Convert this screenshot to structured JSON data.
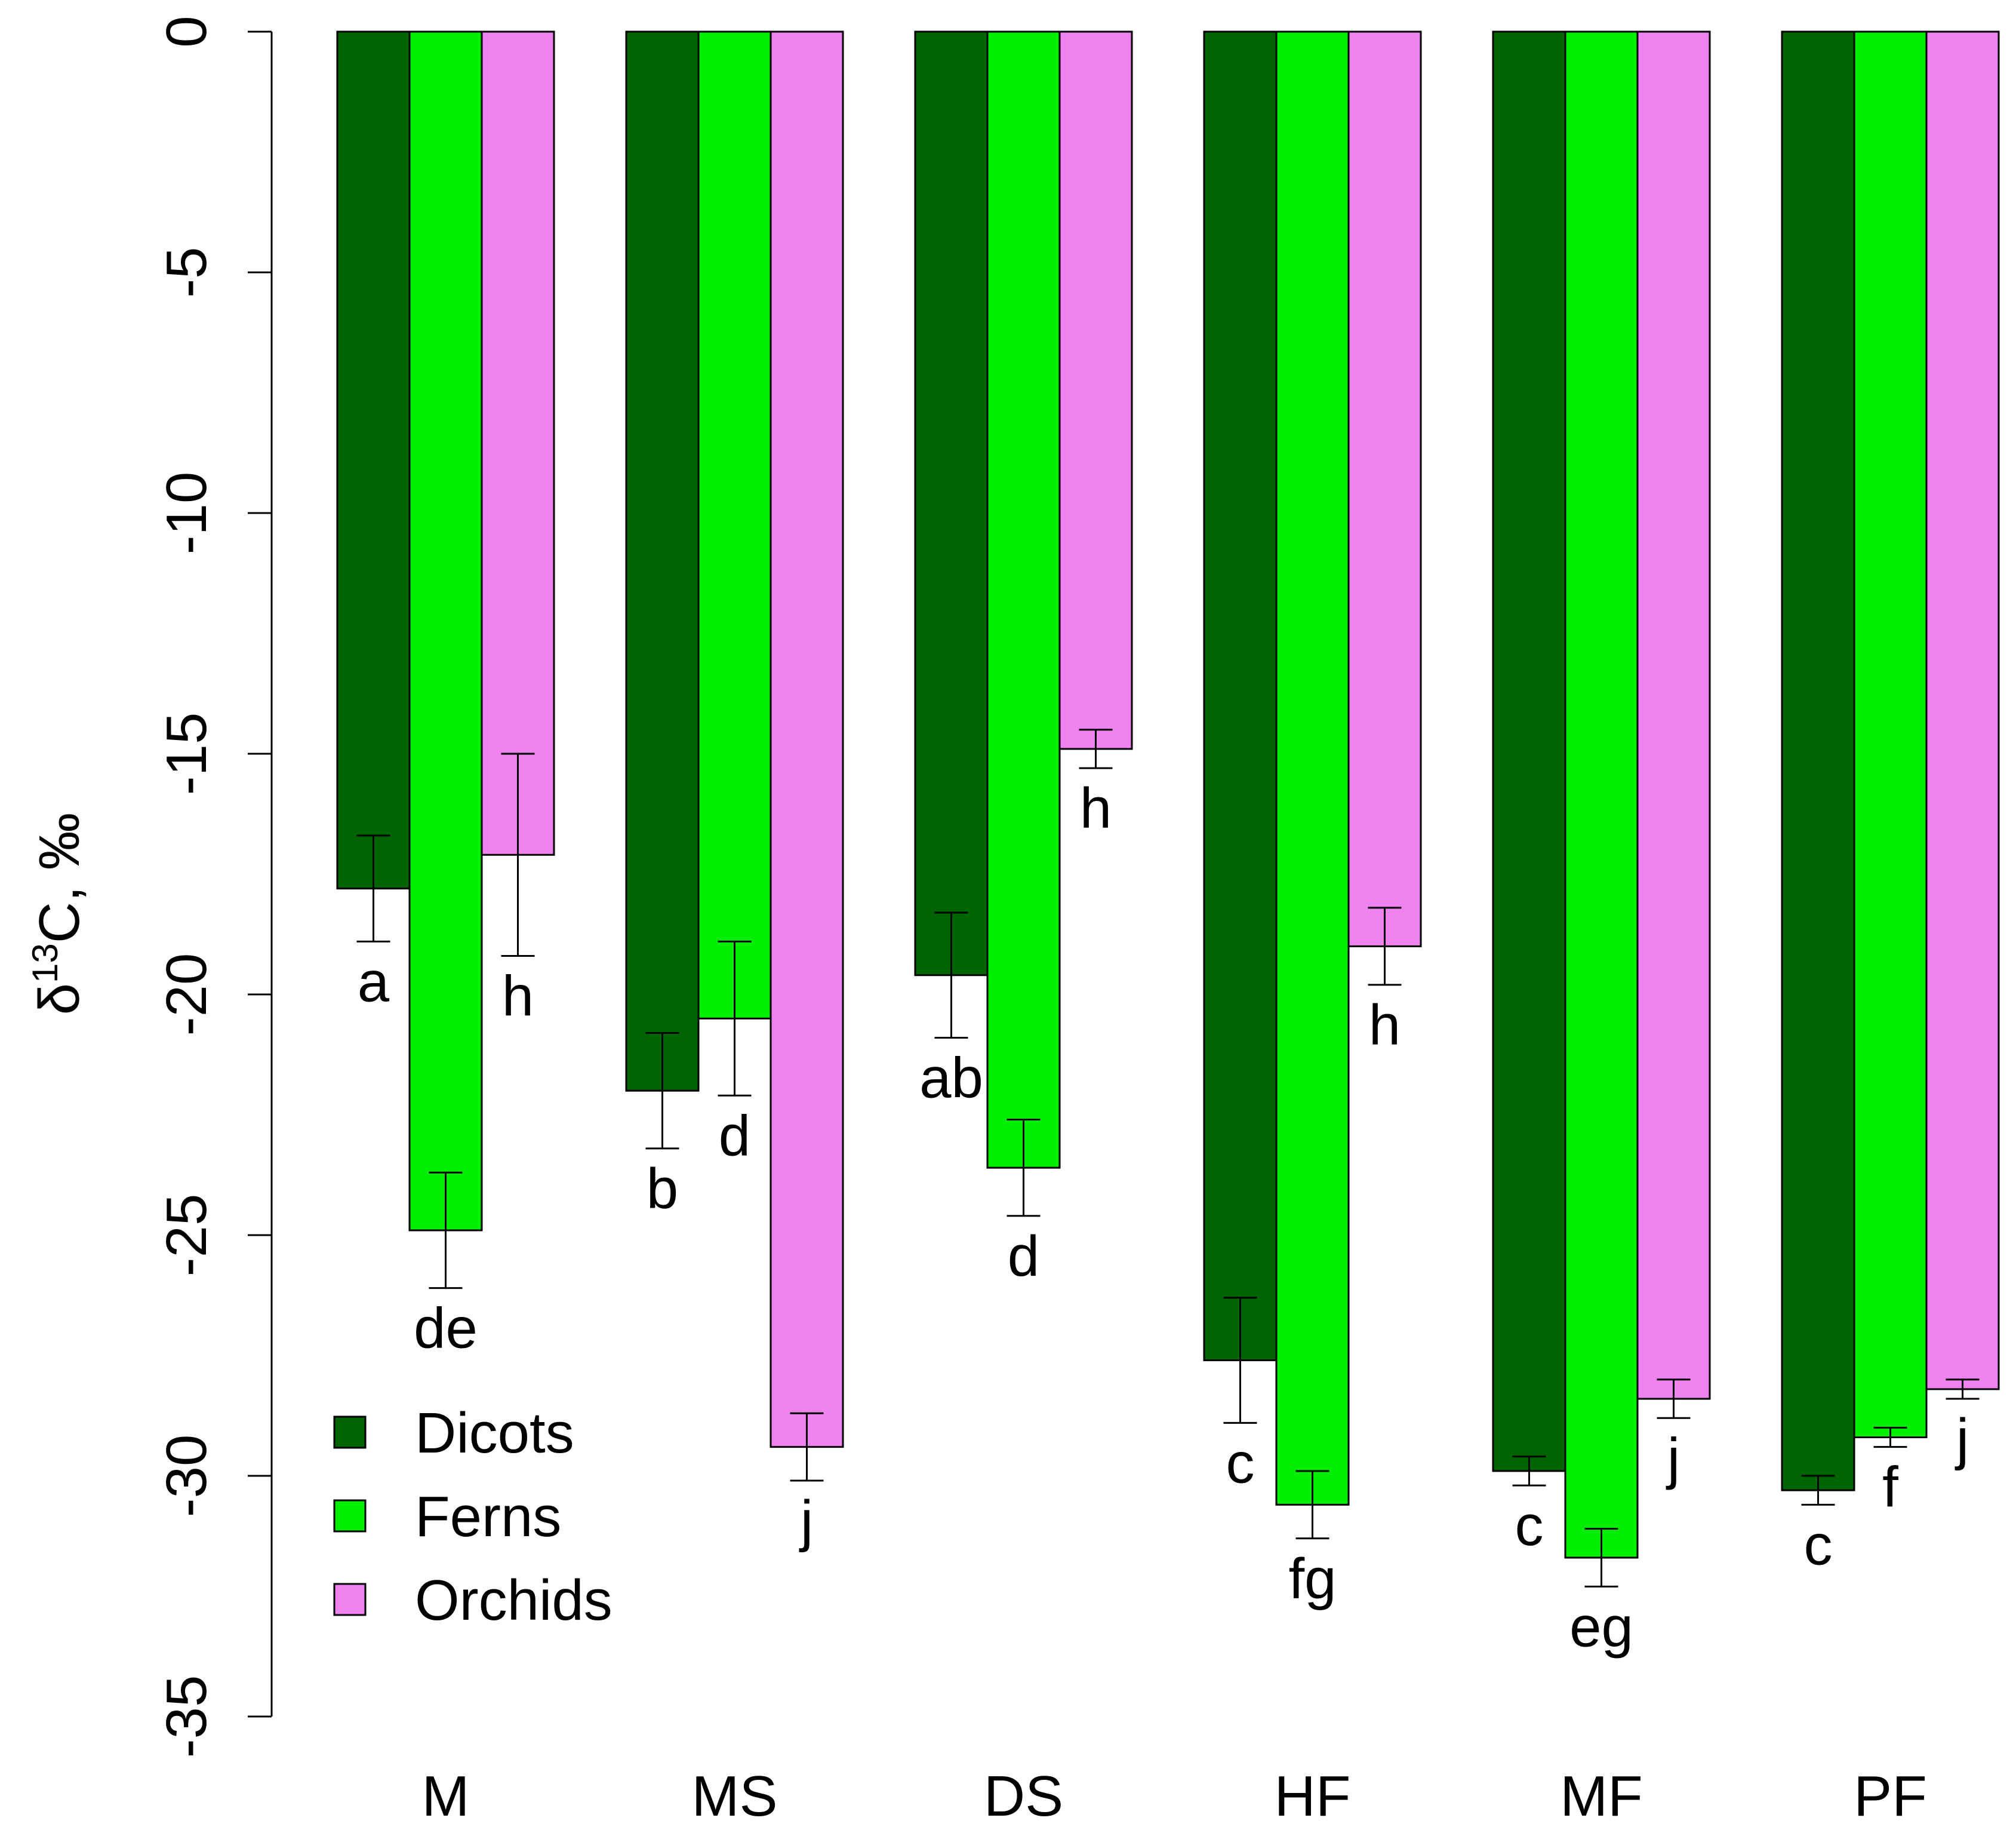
{
  "chart_data": {
    "type": "bar",
    "title": "",
    "xlabel": "",
    "ylabel_prefix": "δ",
    "ylabel_sup": "13",
    "ylabel_suffix": "C, ‰",
    "ylim": [
      -35,
      0
    ],
    "yticks": [
      0,
      -5,
      -10,
      -15,
      -20,
      -25,
      -30,
      -35
    ],
    "ytick_labels": [
      "0",
      "-5",
      "-10",
      "-15",
      "-20",
      "-25",
      "-30",
      "-35"
    ],
    "categories": [
      "M",
      "MS",
      "DS",
      "HF",
      "MF",
      "PF"
    ],
    "legend_position": "bottom-left",
    "series": [
      {
        "name": "Dicots",
        "color": "#006400",
        "values": [
          -17.8,
          -22.0,
          -19.6,
          -27.6,
          -29.9,
          -30.3
        ],
        "errors": [
          1.1,
          1.2,
          1.3,
          1.3,
          0.3,
          0.3
        ],
        "letters": [
          "a",
          "b",
          "ab",
          "c",
          "c",
          "c"
        ]
      },
      {
        "name": "Ferns",
        "color": "#00EE00",
        "values": [
          -24.9,
          -20.5,
          -23.6,
          -30.6,
          -31.7,
          -29.2
        ],
        "errors": [
          1.2,
          1.6,
          1.0,
          0.7,
          0.6,
          0.2
        ],
        "letters": [
          "de",
          "d",
          "d",
          "fg",
          "eg",
          "f"
        ]
      },
      {
        "name": "Orchids",
        "color": "#EE82EE",
        "values": [
          -17.1,
          -29.4,
          -14.9,
          -19.0,
          -28.4,
          -28.2
        ],
        "errors": [
          2.1,
          0.7,
          0.4,
          0.8,
          0.4,
          0.2
        ],
        "letters": [
          "h",
          "j",
          "h",
          "h",
          "j",
          "j"
        ]
      }
    ]
  }
}
